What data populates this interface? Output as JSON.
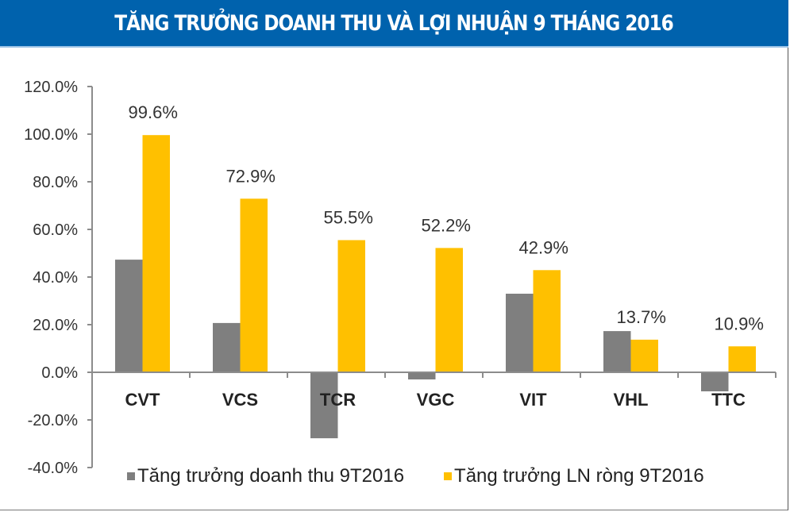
{
  "header": {
    "title": "TĂNG TRƯỞNG DOANH THU VÀ LỢI NHUẬN 9 THÁNG 2016"
  },
  "colors": {
    "header_bg": "#0062ad",
    "revenue": "#7f7f7f",
    "profit": "#ffc000",
    "axis": "#8c8c8c"
  },
  "legend": [
    {
      "label": "Tăng trưởng doanh thu 9T2016",
      "color": "#7f7f7f"
    },
    {
      "label": "Tăng trưởng LN ròng 9T2016",
      "color": "#ffc000"
    }
  ],
  "chart_data": {
    "type": "bar",
    "title": "TĂNG TRƯỞNG DOANH THU VÀ LỢI NHUẬN 9 THÁNG 2016",
    "xlabel": "",
    "ylabel": "",
    "categories": [
      "CVT",
      "VCS",
      "TCR",
      "VGC",
      "VIT",
      "VHL",
      "TTC"
    ],
    "series": [
      {
        "name": "Tăng trưởng doanh thu 9T2016",
        "values": [
          47.3,
          20.7,
          -27.7,
          -3.0,
          33.0,
          17.3,
          -8.0
        ],
        "labeled": false
      },
      {
        "name": "Tăng trưởng LN ròng 9T2016",
        "values": [
          99.6,
          72.9,
          55.5,
          52.2,
          42.9,
          13.7,
          10.9
        ],
        "labeled": true
      }
    ],
    "data_labels": [
      "99.6%",
      "72.9%",
      "55.5%",
      "52.2%",
      "42.9%",
      "13.7%",
      "10.9%"
    ],
    "ylim": [
      -40,
      120
    ],
    "yticks": [
      "120.0%",
      "100.0%",
      "80.0%",
      "60.0%",
      "40.0%",
      "20.0%",
      "0.0%",
      "-20.0%",
      "-40.0%"
    ],
    "ytick_values": [
      120,
      100,
      80,
      60,
      40,
      20,
      0,
      -20,
      -40
    ],
    "grid": false,
    "legend_position": "bottom"
  }
}
